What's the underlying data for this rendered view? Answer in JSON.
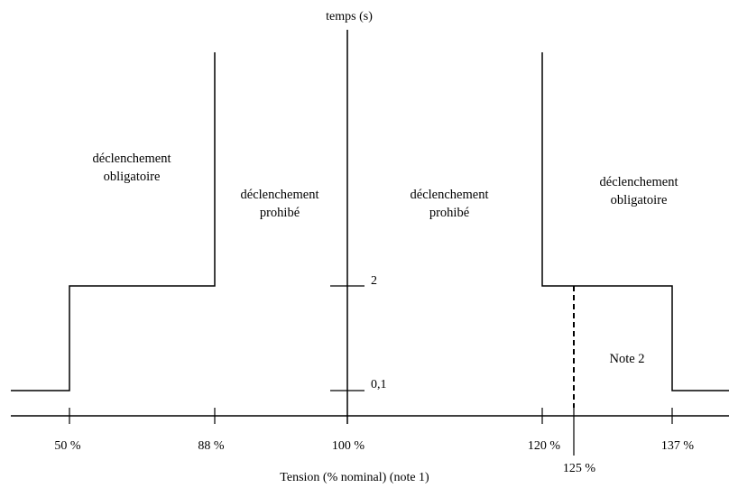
{
  "y_axis_title": "temps (s)",
  "x_axis_title": "Tension (% nominal) (note 1)",
  "y_ticks": [
    "2",
    "0,1"
  ],
  "x_ticks": [
    "50 %",
    "88 %",
    "100 %",
    "120 %",
    "125 %",
    "137 %"
  ],
  "regions": {
    "left_obligatoire": [
      "déclenchement",
      "obligatoire"
    ],
    "left_prohibe": [
      "déclenchement",
      "prohibé"
    ],
    "right_prohibe": [
      "déclenchement",
      "prohibé"
    ],
    "right_obligatoire": [
      "déclenchement",
      "obligatoire"
    ]
  },
  "note": "Note 2",
  "line_color": "#000000"
}
